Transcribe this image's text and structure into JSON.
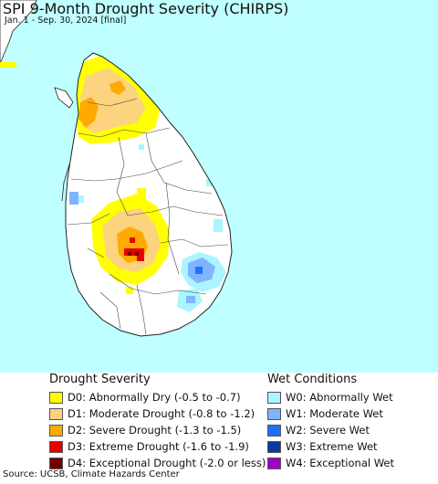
{
  "title": "SPI 9-Month Drought Severity (CHIRPS)",
  "subtitle": "Jan. 1 - Sep. 30, 2024 [final]",
  "colors": {
    "ocean": "#bfffff",
    "land": "#ffffff",
    "border": "#222222"
  },
  "legend_drought": {
    "heading": "Drought Severity",
    "items": [
      {
        "label": "D0: Abnormally Dry (-0.5 to -0.7)",
        "color": "#ffff00"
      },
      {
        "label": "D1: Moderate Drought (-0.8 to -1.2)",
        "color": "#fcd37f"
      },
      {
        "label": "D2: Severe Drought (-1.3 to -1.5)",
        "color": "#ffaa00"
      },
      {
        "label": "D3: Extreme Drought (-1.6 to -1.9)",
        "color": "#e60000"
      },
      {
        "label": "D4: Exceptional Drought (-2.0 or less)",
        "color": "#730000"
      }
    ]
  },
  "legend_wet": {
    "heading": "Wet Conditions",
    "items": [
      {
        "label": "W0: Abnormally Wet",
        "color": "#aaf5ff"
      },
      {
        "label": "W1: Moderate Wet",
        "color": "#7fb4ff"
      },
      {
        "label": "W2: Severe Wet",
        "color": "#1e6eff"
      },
      {
        "label": "W3: Extreme Wet",
        "color": "#0a3ca0"
      },
      {
        "label": "W4: Exceptional Wet",
        "color": "#a000c8"
      }
    ]
  },
  "source": "Source: UCSB, Climate Hazards Center"
}
